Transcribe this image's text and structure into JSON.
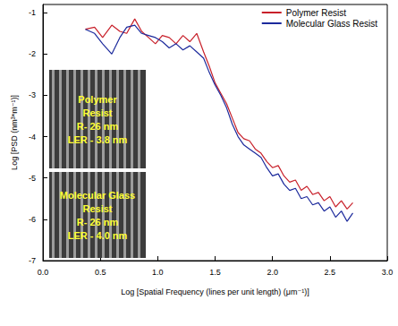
{
  "chart_data": {
    "type": "line",
    "x_label": "Log [Spatial Frequency (lines per unit length) (μm⁻¹)]",
    "y_label": "Log [PSD (nm³*m⁻¹)]",
    "x": [
      0.37,
      0.45,
      0.52,
      0.6,
      0.67,
      0.73,
      0.8,
      0.86,
      0.92,
      0.98,
      1.04,
      1.1,
      1.16,
      1.22,
      1.28,
      1.34,
      1.4,
      1.45,
      1.5,
      1.55,
      1.6,
      1.65,
      1.7,
      1.75,
      1.8,
      1.85,
      1.9,
      1.95,
      2.0,
      2.05,
      2.1,
      2.15,
      2.2,
      2.25,
      2.3,
      2.35,
      2.4,
      2.45,
      2.5,
      2.55,
      2.6,
      2.65,
      2.7
    ],
    "series": [
      {
        "name": "Polymer Resist",
        "color": "#c8202a",
        "values": [
          -1.4,
          -1.35,
          -1.6,
          -1.3,
          -1.45,
          -1.5,
          -1.15,
          -1.45,
          -1.6,
          -1.75,
          -1.55,
          -1.6,
          -1.75,
          -1.55,
          -1.7,
          -1.5,
          -1.95,
          -2.3,
          -2.7,
          -2.95,
          -3.2,
          -3.55,
          -3.9,
          -4.05,
          -4.1,
          -4.3,
          -4.4,
          -4.6,
          -4.75,
          -4.7,
          -4.95,
          -5.1,
          -5.05,
          -5.3,
          -5.2,
          -5.4,
          -5.35,
          -5.55,
          -5.45,
          -5.7,
          -5.55,
          -5.75,
          -5.6
        ]
      },
      {
        "name": "Molecular Glass Resist",
        "color": "#1c2a9c",
        "values": [
          -1.4,
          -1.5,
          -1.75,
          -2.0,
          -1.6,
          -1.35,
          -1.3,
          -1.5,
          -1.55,
          -1.6,
          -1.7,
          -1.85,
          -1.75,
          -1.9,
          -1.8,
          -1.95,
          -2.1,
          -2.45,
          -2.75,
          -3.0,
          -3.3,
          -3.7,
          -4.0,
          -4.2,
          -4.3,
          -4.4,
          -4.5,
          -4.75,
          -4.95,
          -4.9,
          -5.15,
          -5.3,
          -5.25,
          -5.5,
          -5.45,
          -5.65,
          -5.6,
          -5.8,
          -5.7,
          -5.95,
          -5.8,
          -6.05,
          -5.85
        ]
      }
    ],
    "xlim": [
      0,
      3
    ],
    "xticks": [
      {
        "value": 0,
        "label": "0.0"
      },
      0.5,
      {
        "value": 1,
        "label": "1.0"
      },
      1.5,
      {
        "value": 2,
        "label": "2.0"
      },
      2.5,
      {
        "value": 3,
        "label": "3.0"
      }
    ],
    "ylim": [
      -7,
      -0.8
    ],
    "yticks": [
      -7,
      -6,
      -5,
      -4,
      -3,
      -2,
      -1
    ],
    "legend": "upper right",
    "grid": false,
    "annotations": [
      {
        "lines": [
          "Polymer",
          "Resist",
          "R- 26 nm",
          "LER - 3.8 nm"
        ]
      },
      {
        "lines": [
          "Molecular Glass",
          "Resist",
          "R- 26 nm",
          "LER - 4.0 nm"
        ]
      }
    ]
  }
}
